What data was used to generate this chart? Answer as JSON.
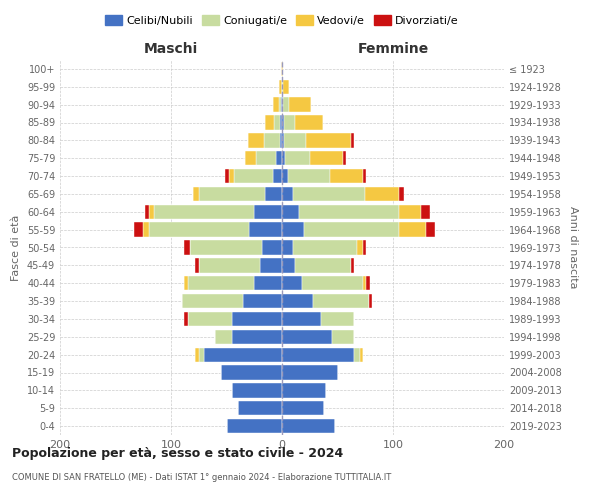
{
  "age_groups": [
    "0-4",
    "5-9",
    "10-14",
    "15-19",
    "20-24",
    "25-29",
    "30-34",
    "35-39",
    "40-44",
    "45-49",
    "50-54",
    "55-59",
    "60-64",
    "65-69",
    "70-74",
    "75-79",
    "80-84",
    "85-89",
    "90-94",
    "95-99",
    "100+"
  ],
  "birth_years": [
    "2019-2023",
    "2014-2018",
    "2009-2013",
    "2004-2008",
    "1999-2003",
    "1994-1998",
    "1989-1993",
    "1984-1988",
    "1979-1983",
    "1974-1978",
    "1969-1973",
    "1964-1968",
    "1959-1963",
    "1954-1958",
    "1949-1953",
    "1944-1948",
    "1939-1943",
    "1934-1938",
    "1929-1933",
    "1924-1928",
    "≤ 1923"
  ],
  "colors": {
    "celibi": "#4472c4",
    "coniugati": "#c8dca0",
    "vedovi": "#f5c842",
    "divorziati": "#cc1111"
  },
  "maschi": {
    "celibi": [
      50,
      40,
      45,
      55,
      70,
      45,
      45,
      35,
      25,
      20,
      18,
      30,
      25,
      15,
      8,
      5,
      2,
      2,
      1,
      0,
      0
    ],
    "coniugati": [
      0,
      0,
      0,
      0,
      5,
      15,
      40,
      55,
      60,
      55,
      65,
      90,
      90,
      60,
      35,
      18,
      14,
      5,
      2,
      0,
      0
    ],
    "vedovi": [
      0,
      0,
      0,
      0,
      3,
      0,
      0,
      0,
      3,
      0,
      0,
      5,
      5,
      5,
      5,
      10,
      15,
      8,
      5,
      3,
      1
    ],
    "divorziati": [
      0,
      0,
      0,
      0,
      0,
      0,
      3,
      0,
      0,
      3,
      5,
      8,
      3,
      0,
      3,
      0,
      0,
      0,
      0,
      0,
      0
    ]
  },
  "femmine": {
    "nubili": [
      48,
      38,
      40,
      50,
      65,
      45,
      35,
      28,
      18,
      12,
      10,
      20,
      15,
      10,
      5,
      3,
      2,
      2,
      1,
      0,
      0
    ],
    "coniugate": [
      0,
      0,
      0,
      0,
      5,
      20,
      30,
      50,
      55,
      50,
      58,
      85,
      90,
      65,
      38,
      22,
      20,
      10,
      5,
      1,
      0
    ],
    "vedove": [
      0,
      0,
      0,
      0,
      3,
      0,
      0,
      0,
      3,
      0,
      5,
      25,
      20,
      30,
      30,
      30,
      40,
      25,
      20,
      5,
      1
    ],
    "divorziate": [
      0,
      0,
      0,
      0,
      0,
      0,
      0,
      3,
      3,
      3,
      3,
      8,
      8,
      5,
      3,
      3,
      3,
      0,
      0,
      0,
      0
    ]
  },
  "title": "Popolazione per età, sesso e stato civile - 2024",
  "subtitle": "COMUNE DI SAN FRATELLO (ME) - Dati ISTAT 1° gennaio 2024 - Elaborazione TUTTITALIA.IT",
  "ylabel_left": "Fasce di età",
  "ylabel_right": "Anni di nascita",
  "xlabel_maschi": "Maschi",
  "xlabel_femmine": "Femmine",
  "xlim": [
    -200,
    200
  ],
  "legend_labels": [
    "Celibi/Nubili",
    "Coniugati/e",
    "Vedovi/e",
    "Divorziati/e"
  ],
  "bg_color": "#ffffff",
  "grid_color": "#cccccc"
}
